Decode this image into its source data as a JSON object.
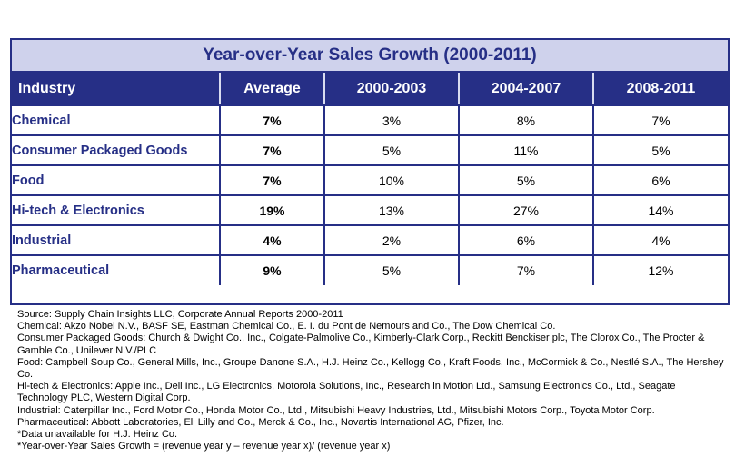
{
  "title": "Year-over-Year Sales Growth (2000-2011)",
  "columns": [
    "Industry",
    "Average",
    "2000-2003",
    "2004-2007",
    "2008-2011"
  ],
  "rows": [
    {
      "industry": "Chemical",
      "average": "7%",
      "p1": "3%",
      "p2": "8%",
      "p3": "7%"
    },
    {
      "industry": "Consumer Packaged Goods",
      "average": "7%",
      "p1": "5%",
      "p2": "11%",
      "p3": "5%"
    },
    {
      "industry": "Food",
      "average": "7%",
      "p1": "10%",
      "p2": "5%",
      "p3": "6%"
    },
    {
      "industry": "Hi-tech & Electronics",
      "average": "19%",
      "p1": "13%",
      "p2": "27%",
      "p3": "14%"
    },
    {
      "industry": "Industrial",
      "average": "4%",
      "p1": "2%",
      "p2": "6%",
      "p3": "4%"
    },
    {
      "industry": "Pharmaceutical",
      "average": "9%",
      "p1": "5%",
      "p2": "7%",
      "p3": "12%"
    }
  ],
  "notes": [
    "Source: Supply Chain Insights LLC, Corporate Annual Reports 2000-2011",
    "Chemical: Akzo Nobel N.V., BASF SE, Eastman Chemical Co., E. I. du Pont de Nemours and Co., The Dow Chemical Co.",
    "Consumer Packaged Goods: Church & Dwight Co., Inc., Colgate-Palmolive Co., Kimberly-Clark Corp., Reckitt Benckiser plc, The Clorox Co., The Procter & Gamble Co., Unilever N.V./PLC",
    "Food: Campbell Soup Co., General Mills, Inc., Groupe Danone S.A., H.J. Heinz Co., Kellogg Co., Kraft Foods, Inc., McCormick & Co., Nestlé S.A., The Hershey Co.",
    "Hi-tech & Electronics: Apple Inc., Dell Inc., LG Electronics, Motorola Solutions, Inc., Research in Motion Ltd., Samsung Electronics Co., Ltd., Seagate Technology PLC, Western Digital Corp.",
    "Industrial: Caterpillar Inc., Ford Motor Co., Honda Motor Co., Ltd., Mitsubishi Heavy Industries, Ltd., Mitsubishi Motors Corp., Toyota Motor Corp.",
    "Pharmaceutical: Abbott Laboratories, Eli Lilly and Co., Merck & Co., Inc., Novartis International AG, Pfizer, Inc.",
    "*Data unavailable  for H.J. Heinz Co.",
    "*Year-over-Year Sales Growth = (revenue year y – revenue year x)/ (revenue year x)"
  ],
  "colors": {
    "navy": "#262f86",
    "title_bg": "#cfd2ec"
  }
}
